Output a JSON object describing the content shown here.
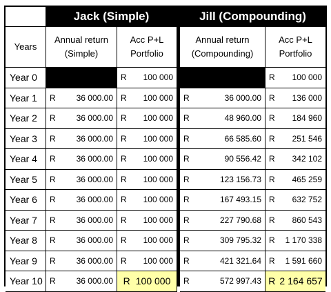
{
  "headers": {
    "jack": "Jack (Simple)",
    "jill": "Jill (Compounding)",
    "years_col": "Years",
    "jack_return": "Annual return (Simple)",
    "jack_acc": "Acc P+L Portfolio",
    "jill_return": "Annual return (Compounding)",
    "jill_acc": "Acc P+L Portfolio"
  },
  "currency": "R",
  "rows": [
    {
      "year": "Year 0",
      "jack_return": "",
      "jack_acc": "100 000",
      "jill_return": "",
      "jill_acc": "100 000"
    },
    {
      "year": "Year 1",
      "jack_return": "36 000.00",
      "jack_acc": "100 000",
      "jill_return": "36 000.00",
      "jill_acc": "136 000"
    },
    {
      "year": "Year 2",
      "jack_return": "36 000.00",
      "jack_acc": "100 000",
      "jill_return": "48 960.00",
      "jill_acc": "184 960"
    },
    {
      "year": "Year 3",
      "jack_return": "36 000.00",
      "jack_acc": "100 000",
      "jill_return": "66 585.60",
      "jill_acc": "251 546"
    },
    {
      "year": "Year 4",
      "jack_return": "36 000.00",
      "jack_acc": "100 000",
      "jill_return": "90 556.42",
      "jill_acc": "342 102"
    },
    {
      "year": "Year 5",
      "jack_return": "36 000.00",
      "jack_acc": "100 000",
      "jill_return": "123 156.73",
      "jill_acc": "465 259"
    },
    {
      "year": "Year 6",
      "jack_return": "36 000.00",
      "jack_acc": "100 000",
      "jill_return": "167 493.15",
      "jill_acc": "632 752"
    },
    {
      "year": "Year 7",
      "jack_return": "36 000.00",
      "jack_acc": "100 000",
      "jill_return": "227 790.68",
      "jill_acc": "860 543"
    },
    {
      "year": "Year 8",
      "jack_return": "36 000.00",
      "jack_acc": "100 000",
      "jill_return": "309 795.32",
      "jill_acc": "1 170 338"
    },
    {
      "year": "Year 9",
      "jack_return": "36 000.00",
      "jack_acc": "100 000",
      "jill_return": "421 321.64",
      "jill_acc": "1 591 660"
    },
    {
      "year": "Year 10",
      "jack_return": "36 000.00",
      "jack_acc": "100 000",
      "jill_return": "572 997.43",
      "jill_acc": "2 164 657"
    }
  ],
  "colors": {
    "highlight": "#ffffa8",
    "header_bg": "#000000",
    "header_text": "#ffffff"
  }
}
